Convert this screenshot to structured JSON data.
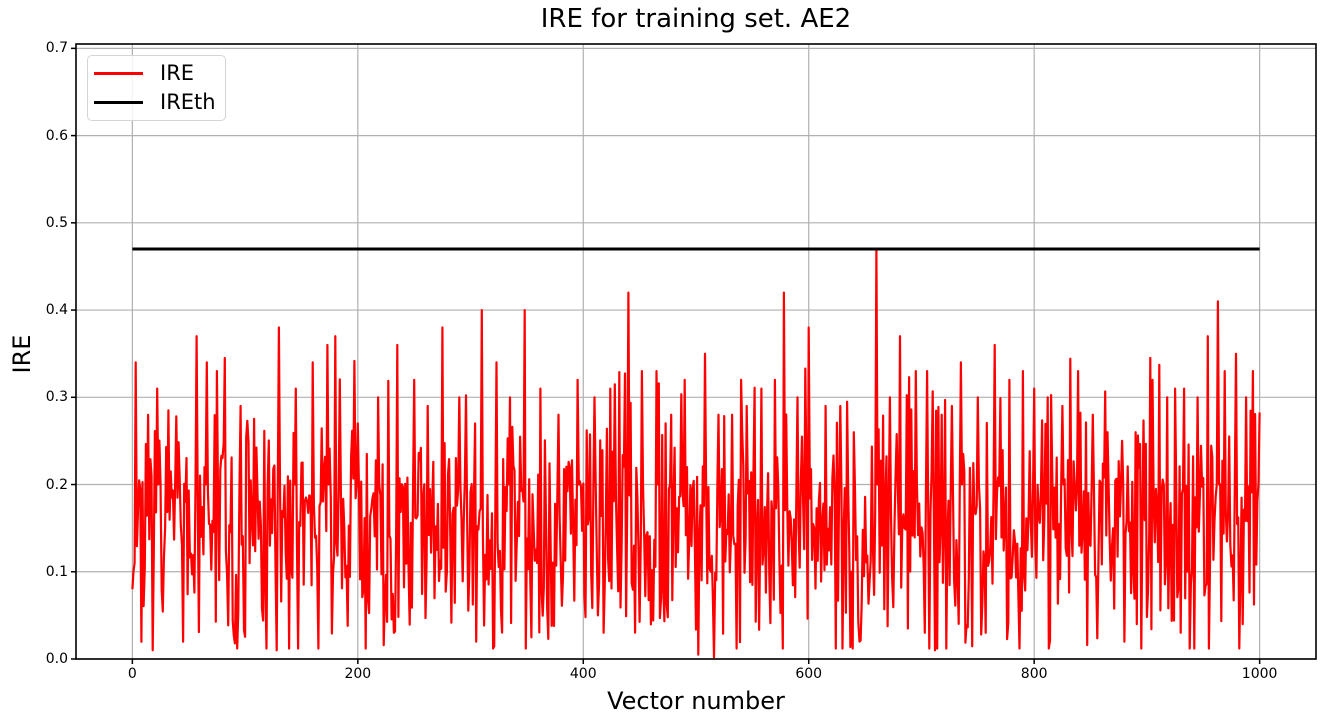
{
  "figure": {
    "background_color": "#ffffff"
  },
  "chart_data": {
    "type": "line",
    "title": "IRE for training set. AE2",
    "xlabel": "Vector number",
    "ylabel": "IRE",
    "xlim": [
      -50,
      1050
    ],
    "ylim": [
      0,
      0.705
    ],
    "x_ticks": [
      0,
      200,
      400,
      600,
      800,
      1000
    ],
    "y_ticks": [
      0.0,
      0.1,
      0.2,
      0.3,
      0.4,
      0.5,
      0.6,
      0.7
    ],
    "grid": true,
    "grid_color": "#b0b0b0",
    "spine_color": "#000000",
    "legend": {
      "position": "upper-left",
      "entries": [
        {
          "label": "IRE",
          "color": "#ff0000",
          "line_width": 3
        },
        {
          "label": "IREth",
          "color": "#000000",
          "line_width": 3
        }
      ]
    },
    "series": [
      {
        "name": "IRE",
        "color": "#ff0000",
        "line_width": 2.2,
        "n_points": 1000,
        "x_range": [
          0,
          1000
        ],
        "start_value": 0.08,
        "value_profile": {
          "description": "dense jagged noise",
          "mean": 0.155,
          "std": 0.07,
          "min": 0.0,
          "max": 0.47,
          "seed": 7
        },
        "notable_peaks": [
          [
            3,
            0.34
          ],
          [
            22,
            0.31
          ],
          [
            57,
            0.37
          ],
          [
            66,
            0.34
          ],
          [
            75,
            0.33
          ],
          [
            96,
            0.29
          ],
          [
            130,
            0.38
          ],
          [
            145,
            0.31
          ],
          [
            160,
            0.34
          ],
          [
            173,
            0.36
          ],
          [
            180,
            0.37
          ],
          [
            200,
            0.27
          ],
          [
            218,
            0.3
          ],
          [
            235,
            0.36
          ],
          [
            250,
            0.32
          ],
          [
            262,
            0.29
          ],
          [
            275,
            0.38
          ],
          [
            290,
            0.3
          ],
          [
            310,
            0.4
          ],
          [
            323,
            0.34
          ],
          [
            335,
            0.3
          ],
          [
            348,
            0.4
          ],
          [
            362,
            0.31
          ],
          [
            378,
            0.28
          ],
          [
            395,
            0.32
          ],
          [
            410,
            0.3
          ],
          [
            424,
            0.31
          ],
          [
            440,
            0.42
          ],
          [
            452,
            0.33
          ],
          [
            465,
            0.33
          ],
          [
            478,
            0.28
          ],
          [
            490,
            0.32
          ],
          [
            508,
            0.35
          ],
          [
            520,
            0.28
          ],
          [
            532,
            0.28
          ],
          [
            545,
            0.29
          ],
          [
            558,
            0.31
          ],
          [
            570,
            0.32
          ],
          [
            578,
            0.42
          ],
          [
            590,
            0.3
          ],
          [
            600,
            0.38
          ],
          [
            615,
            0.29
          ],
          [
            628,
            0.29
          ],
          [
            640,
            0.26
          ],
          [
            660,
            0.47
          ],
          [
            672,
            0.3
          ],
          [
            681,
            0.37
          ],
          [
            695,
            0.33
          ],
          [
            705,
            0.33
          ],
          [
            718,
            0.28
          ],
          [
            727,
            0.29
          ],
          [
            735,
            0.34
          ],
          [
            750,
            0.3
          ],
          [
            765,
            0.36
          ],
          [
            778,
            0.32
          ],
          [
            790,
            0.33
          ],
          [
            800,
            0.31
          ],
          [
            812,
            0.3
          ],
          [
            825,
            0.29
          ],
          [
            839,
            0.33
          ],
          [
            852,
            0.28
          ],
          [
            865,
            0.26
          ],
          [
            878,
            0.25
          ],
          [
            890,
            0.26
          ],
          [
            905,
            0.32
          ],
          [
            918,
            0.3
          ],
          [
            925,
            0.31
          ],
          [
            933,
            0.31
          ],
          [
            945,
            0.3
          ],
          [
            954,
            0.37
          ],
          [
            963,
            0.41
          ],
          [
            969,
            0.33
          ],
          [
            979,
            0.35
          ],
          [
            988,
            0.3
          ],
          [
            994,
            0.33
          ]
        ],
        "near_zero_dips": [
          [
            18,
            0.01
          ],
          [
            45,
            0.02
          ],
          [
            128,
            0.01
          ],
          [
            232,
            0.03
          ],
          [
            305,
            0.02
          ],
          [
            418,
            0.03
          ],
          [
            502,
            0.005
          ],
          [
            516,
            0.002
          ],
          [
            645,
            0.02
          ],
          [
            712,
            0.01
          ],
          [
            757,
            0.03
          ],
          [
            880,
            0.02
          ],
          [
            930,
            0.03
          ],
          [
            985,
            0.04
          ]
        ]
      },
      {
        "name": "IREth",
        "type": "threshold",
        "color": "#000000",
        "line_width": 3,
        "value": 0.47,
        "x_range": [
          0,
          1000
        ]
      }
    ]
  }
}
